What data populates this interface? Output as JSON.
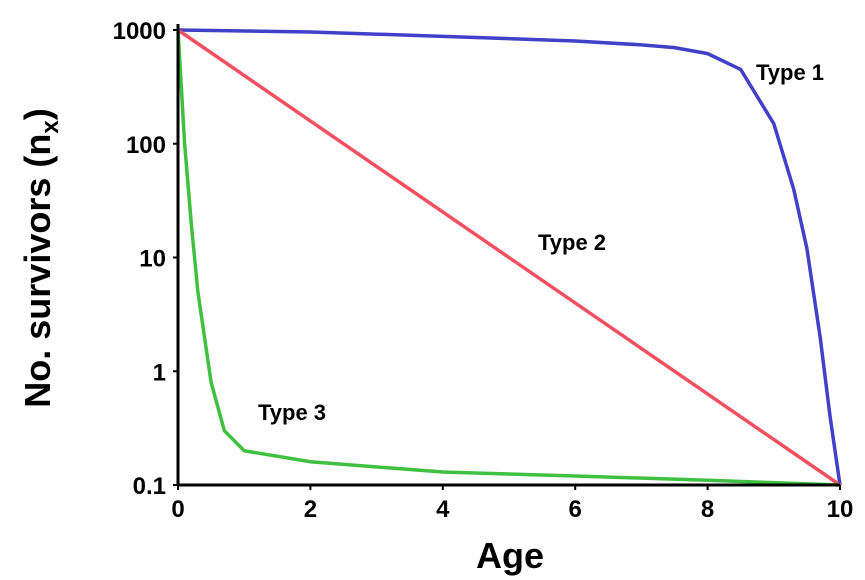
{
  "chart_data": {
    "type": "line",
    "xlabel": "Age",
    "ylabel": [
      "No. survivors (n",
      "x",
      ")"
    ],
    "ylog": true,
    "grid": false,
    "xlim": [
      0,
      10
    ],
    "xticks": [
      0,
      2,
      4,
      6,
      8,
      10
    ],
    "ylim": [
      0.1,
      1000
    ],
    "yticks": [
      0.1,
      1,
      10,
      100,
      1000
    ],
    "series": [
      {
        "name": "Type 1",
        "color": "#4040c8",
        "x": [
          0,
          2,
          4,
          6,
          7,
          7.5,
          8,
          8.5,
          9,
          9.3,
          9.5,
          9.7,
          9.85,
          10
        ],
        "values": [
          1000,
          960,
          880,
          800,
          740,
          700,
          620,
          450,
          150,
          40,
          12,
          2,
          0.4,
          0.1
        ]
      },
      {
        "name": "Type 2",
        "color": "#f05060",
        "x": [
          0,
          10
        ],
        "values": [
          1000,
          0.1
        ]
      },
      {
        "name": "Type 3",
        "color": "#40c040",
        "x": [
          0,
          0.1,
          0.2,
          0.3,
          0.5,
          0.7,
          1,
          2,
          4,
          6,
          8,
          10
        ],
        "values": [
          1000,
          100,
          20,
          5,
          0.8,
          0.3,
          0.2,
          0.16,
          0.13,
          0.12,
          0.11,
          0.1
        ]
      }
    ]
  }
}
